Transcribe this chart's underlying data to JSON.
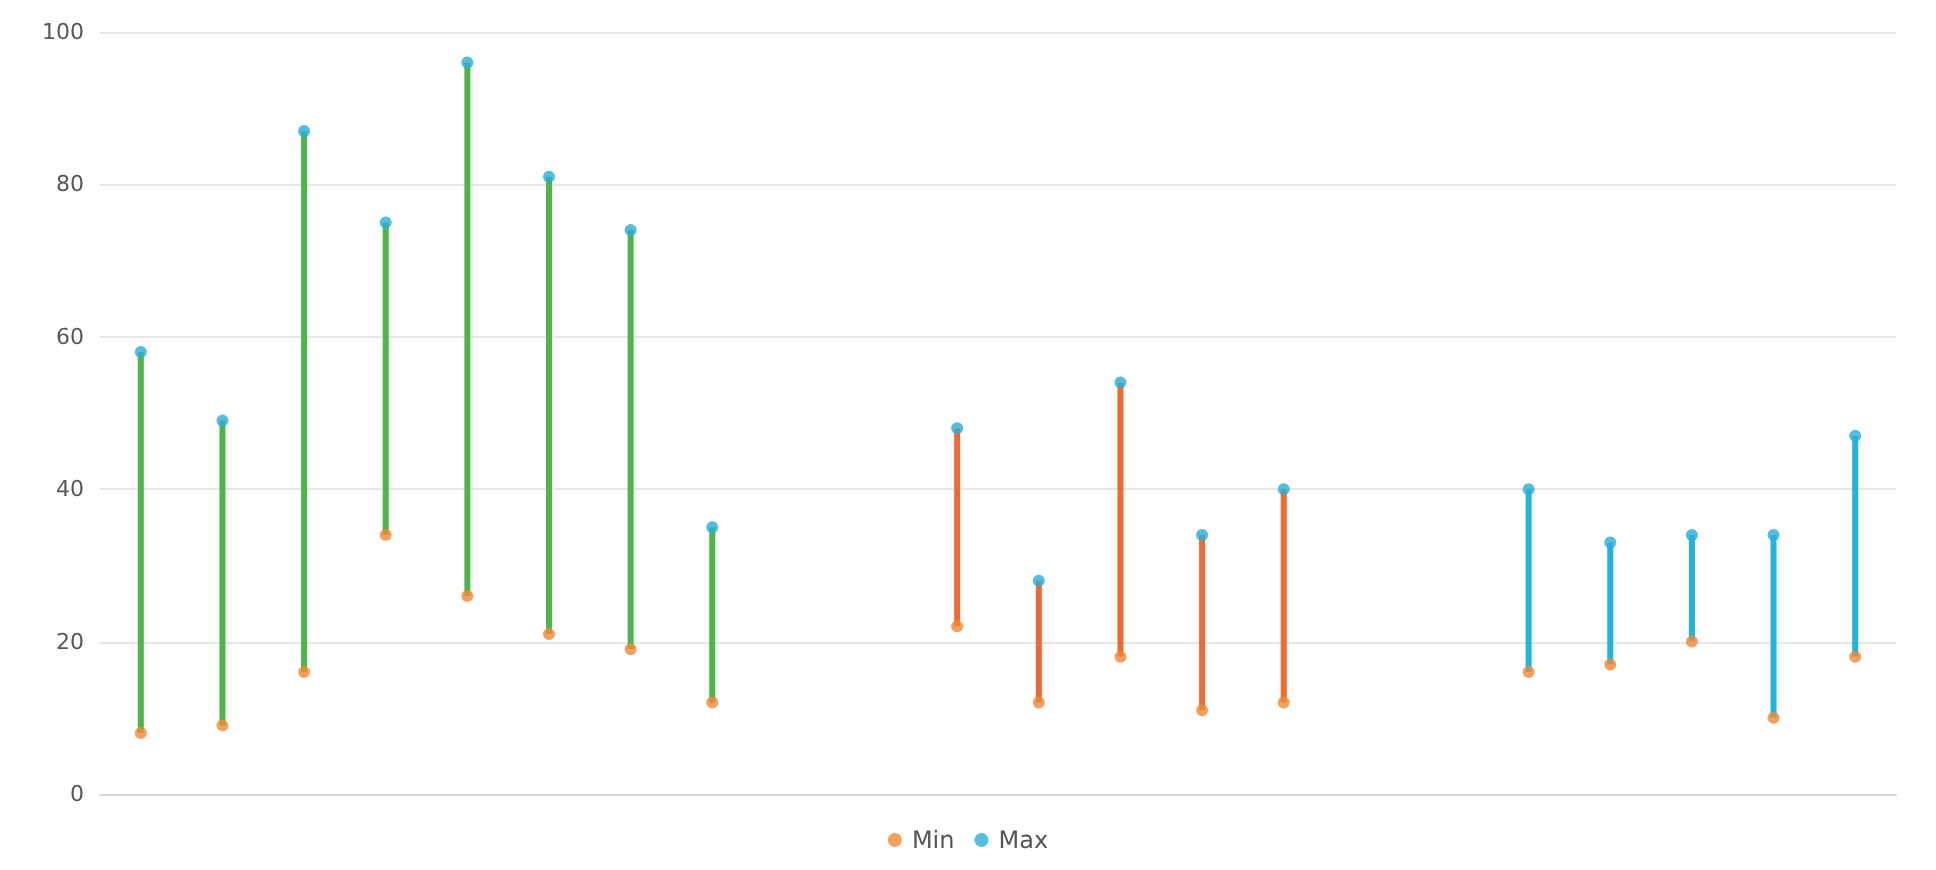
{
  "chart_data": {
    "type": "bar",
    "categories": [
      null,
      null,
      null,
      null,
      null,
      null,
      null,
      null,
      null,
      null,
      null,
      null,
      null,
      null,
      null,
      null,
      null,
      null,
      null,
      null,
      null,
      null
    ],
    "series": [
      {
        "values": [
          50,
          40,
          71,
          41,
          70,
          60,
          55,
          23,
          null,
          null,
          26,
          16,
          36,
          23,
          28,
          null,
          null,
          24,
          16,
          14,
          24,
          29
        ],
        "base": [
          8,
          9,
          16,
          34,
          26,
          21,
          19,
          12,
          null,
          null,
          22,
          12,
          18,
          11,
          12,
          null,
          null,
          16,
          17,
          20,
          10,
          18
        ],
        "colors": [
          "#4cb748",
          "#4cb748",
          "#4cb748",
          "#4cb748",
          "#4cb748",
          "#4cb748",
          "#4cb748",
          "#4cb748",
          null,
          null,
          "#ee6a2f",
          "#ee6a2f",
          "#ee6a2f",
          "#ee6a2f",
          "#ee6a2f",
          null,
          null,
          "#1fb3e6",
          "#1fb3e6",
          "#1fb3e6",
          "#1fb3e6",
          "#1fb3e6"
        ]
      },
      {
        "type": "scatter",
        "name": "Min",
        "color": "#f08a34",
        "values": [
          8,
          9,
          16,
          34,
          26,
          21,
          19,
          12,
          null,
          null,
          22,
          12,
          18,
          11,
          12,
          null,
          null,
          16,
          17,
          20,
          10,
          18
        ]
      },
      {
        "type": "scatter",
        "name": "Max",
        "color": "#2aaed8",
        "values": [
          58,
          49,
          87,
          75,
          96,
          81,
          74,
          35,
          null,
          null,
          48,
          28,
          54,
          34,
          40,
          null,
          null,
          40,
          33,
          34,
          34,
          47
        ]
      }
    ],
    "ylim": [
      0,
      100
    ],
    "yticks": [
      0,
      20,
      40,
      60,
      80,
      100
    ],
    "grid": "y",
    "legend": "bottom",
    "marker": "circle"
  }
}
